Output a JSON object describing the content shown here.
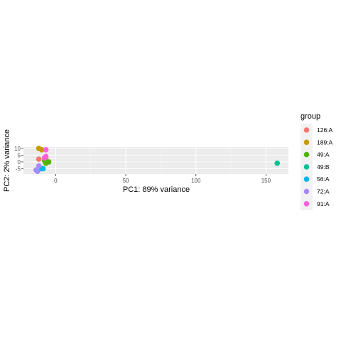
{
  "chart_data": {
    "type": "scatter",
    "title": "",
    "xlabel": "PC1: 89% variance",
    "ylabel": "PC2: 2% variance",
    "xlim": [
      -23,
      166
    ],
    "ylim": [
      -9,
      11
    ],
    "x_ticks": [
      0,
      50,
      100,
      150
    ],
    "y_ticks": [
      10,
      5,
      0,
      -5
    ],
    "grid": true,
    "legend": {
      "title": "group",
      "position": "right"
    },
    "series": [
      {
        "name": "126:A",
        "color": "#F8766D",
        "points": [
          [
            -12,
            2
          ],
          [
            -7,
            3
          ]
        ]
      },
      {
        "name": "189:A",
        "color": "#C49A00",
        "points": [
          [
            -12,
            10
          ],
          [
            -10,
            9
          ]
        ]
      },
      {
        "name": "49:A",
        "color": "#53B400",
        "points": [
          [
            -8,
            1
          ],
          [
            -5,
            0
          ],
          [
            -7,
            -1
          ]
        ]
      },
      {
        "name": "49:B",
        "color": "#00C094",
        "points": [
          [
            158,
            -1
          ]
        ]
      },
      {
        "name": "56:A",
        "color": "#00B6EB",
        "points": [
          [
            -10,
            -5
          ],
          [
            -9,
            -5
          ]
        ]
      },
      {
        "name": "72:A",
        "color": "#A58AFF",
        "points": [
          [
            -12,
            -3
          ],
          [
            -14,
            -6
          ],
          [
            -13,
            -7
          ]
        ]
      },
      {
        "name": "91:A",
        "color": "#FB61D7",
        "points": [
          [
            -7,
            9
          ],
          [
            -7,
            4
          ],
          [
            -8,
            3
          ]
        ]
      }
    ]
  }
}
